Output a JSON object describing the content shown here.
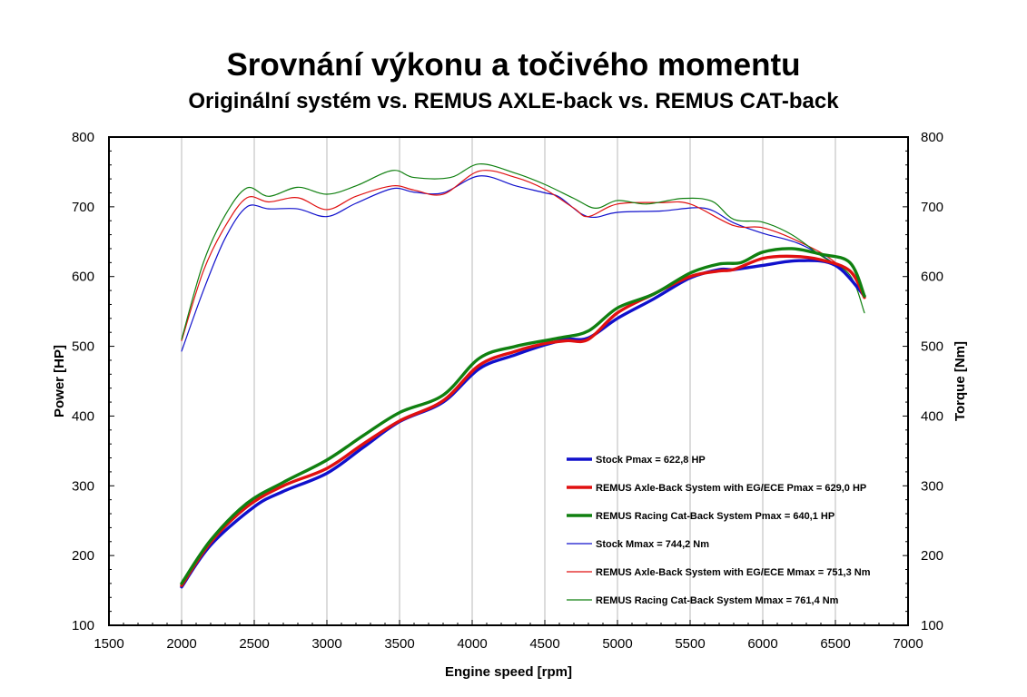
{
  "chart_data": {
    "type": "line",
    "title": "Srovnání výkonu a točivého momentu",
    "subtitle": "Originální systém vs. REMUS AXLE-back vs. REMUS CAT-back",
    "xlabel": "Engine speed [rpm]",
    "ylabel_left": "Power [HP]",
    "ylabel_right": "Torque [Nm]",
    "xlim": [
      1500,
      7000
    ],
    "ylim_left": [
      100,
      800
    ],
    "ylim_right": [
      100,
      800
    ],
    "x_ticks": [
      "1500",
      "2000",
      "2500",
      "3000",
      "3500",
      "4000",
      "4500",
      "5000",
      "5500",
      "6000",
      "6500",
      "7000"
    ],
    "y_ticks_left": [
      "100",
      "200",
      "300",
      "400",
      "500",
      "600",
      "700",
      "800"
    ],
    "y_ticks_right": [
      "100",
      "200",
      "300",
      "400",
      "500",
      "600",
      "700",
      "800"
    ],
    "grid": "vertical",
    "legend_position": "bottom-right",
    "series": [
      {
        "name": "Stock Pmax = 622,8 HP",
        "color": "#1010cc",
        "weight": "thick",
        "axis": "left",
        "points": [
          [
            2000,
            155
          ],
          [
            2200,
            215
          ],
          [
            2500,
            270
          ],
          [
            2700,
            292
          ],
          [
            3000,
            318
          ],
          [
            3250,
            355
          ],
          [
            3500,
            392
          ],
          [
            3800,
            420
          ],
          [
            4050,
            468
          ],
          [
            4300,
            488
          ],
          [
            4500,
            502
          ],
          [
            4650,
            510
          ],
          [
            4800,
            512
          ],
          [
            5000,
            540
          ],
          [
            5250,
            568
          ],
          [
            5500,
            598
          ],
          [
            5700,
            610
          ],
          [
            5800,
            610
          ],
          [
            6000,
            616
          ],
          [
            6250,
            622.8
          ],
          [
            6500,
            616
          ],
          [
            6700,
            572
          ]
        ]
      },
      {
        "name": "REMUS Axle-Back System with EG/ECE Pmax = 629,0 HP",
        "color": "#e01010",
        "weight": "thick",
        "axis": "left",
        "points": [
          [
            2000,
            157
          ],
          [
            2200,
            219
          ],
          [
            2450,
            270
          ],
          [
            2700,
            300
          ],
          [
            3000,
            325
          ],
          [
            3250,
            360
          ],
          [
            3500,
            393
          ],
          [
            3800,
            422
          ],
          [
            4050,
            473
          ],
          [
            4300,
            493
          ],
          [
            4500,
            504
          ],
          [
            4650,
            508
          ],
          [
            4800,
            510
          ],
          [
            5000,
            548
          ],
          [
            5250,
            575
          ],
          [
            5500,
            600
          ],
          [
            5700,
            608
          ],
          [
            5800,
            610
          ],
          [
            6000,
            626
          ],
          [
            6200,
            629
          ],
          [
            6400,
            624
          ],
          [
            6600,
            608
          ],
          [
            6700,
            570
          ]
        ]
      },
      {
        "name": "REMUS Racing Cat-Back System Pmax = 640,1 HP",
        "color": "#108010",
        "weight": "thick",
        "axis": "left",
        "points": [
          [
            2000,
            160
          ],
          [
            2200,
            222
          ],
          [
            2450,
            275
          ],
          [
            2700,
            305
          ],
          [
            3000,
            337
          ],
          [
            3250,
            372
          ],
          [
            3500,
            405
          ],
          [
            3800,
            430
          ],
          [
            4050,
            483
          ],
          [
            4300,
            500
          ],
          [
            4600,
            512
          ],
          [
            4800,
            522
          ],
          [
            5000,
            555
          ],
          [
            5250,
            575
          ],
          [
            5500,
            605
          ],
          [
            5700,
            618
          ],
          [
            5850,
            620
          ],
          [
            6000,
            635
          ],
          [
            6200,
            640
          ],
          [
            6400,
            632
          ],
          [
            6600,
            620
          ],
          [
            6700,
            572
          ]
        ]
      },
      {
        "name": "Stock Mmax = 744,2 Nm",
        "color": "#1010cc",
        "weight": "thin",
        "axis": "right",
        "points": [
          [
            2000,
            493
          ],
          [
            2150,
            580
          ],
          [
            2300,
            655
          ],
          [
            2450,
            700
          ],
          [
            2600,
            697
          ],
          [
            2800,
            697
          ],
          [
            3000,
            686
          ],
          [
            3200,
            705
          ],
          [
            3450,
            726
          ],
          [
            3600,
            721
          ],
          [
            3800,
            720
          ],
          [
            4050,
            744.2
          ],
          [
            4300,
            730
          ],
          [
            4500,
            720
          ],
          [
            4600,
            714
          ],
          [
            4750,
            690
          ],
          [
            4850,
            685
          ],
          [
            5000,
            692
          ],
          [
            5300,
            694
          ],
          [
            5600,
            698
          ],
          [
            5800,
            677
          ],
          [
            6000,
            662
          ],
          [
            6250,
            647
          ],
          [
            6500,
            617
          ],
          [
            6700,
            575
          ]
        ]
      },
      {
        "name": "REMUS Axle-Back System with EG/ECE Mmax = 751,3 Nm",
        "color": "#e01010",
        "weight": "thin",
        "axis": "right",
        "points": [
          [
            2000,
            508
          ],
          [
            2150,
            608
          ],
          [
            2300,
            672
          ],
          [
            2450,
            713
          ],
          [
            2600,
            707
          ],
          [
            2800,
            713
          ],
          [
            3000,
            696
          ],
          [
            3200,
            715
          ],
          [
            3450,
            730
          ],
          [
            3600,
            724
          ],
          [
            3800,
            718
          ],
          [
            4050,
            751.3
          ],
          [
            4300,
            742
          ],
          [
            4500,
            725
          ],
          [
            4700,
            698
          ],
          [
            4800,
            686
          ],
          [
            5000,
            704
          ],
          [
            5300,
            706
          ],
          [
            5500,
            704
          ],
          [
            5800,
            673
          ],
          [
            6000,
            670
          ],
          [
            6250,
            650
          ],
          [
            6500,
            620
          ],
          [
            6700,
            571
          ]
        ]
      },
      {
        "name": "REMUS Racing Cat-Back System Mmax = 761,4 Nm",
        "color": "#108010",
        "weight": "thin",
        "axis": "right",
        "points": [
          [
            2000,
            510
          ],
          [
            2150,
            620
          ],
          [
            2300,
            688
          ],
          [
            2450,
            727
          ],
          [
            2600,
            715
          ],
          [
            2800,
            728
          ],
          [
            3000,
            718
          ],
          [
            3200,
            730
          ],
          [
            3450,
            752
          ],
          [
            3600,
            742
          ],
          [
            3850,
            742
          ],
          [
            4050,
            761.4
          ],
          [
            4300,
            748
          ],
          [
            4500,
            732
          ],
          [
            4700,
            712
          ],
          [
            4850,
            698
          ],
          [
            5000,
            709
          ],
          [
            5200,
            704
          ],
          [
            5450,
            712
          ],
          [
            5650,
            708
          ],
          [
            5800,
            682
          ],
          [
            6000,
            678
          ],
          [
            6200,
            660
          ],
          [
            6400,
            630
          ],
          [
            6600,
            602
          ],
          [
            6700,
            548
          ]
        ]
      }
    ]
  }
}
